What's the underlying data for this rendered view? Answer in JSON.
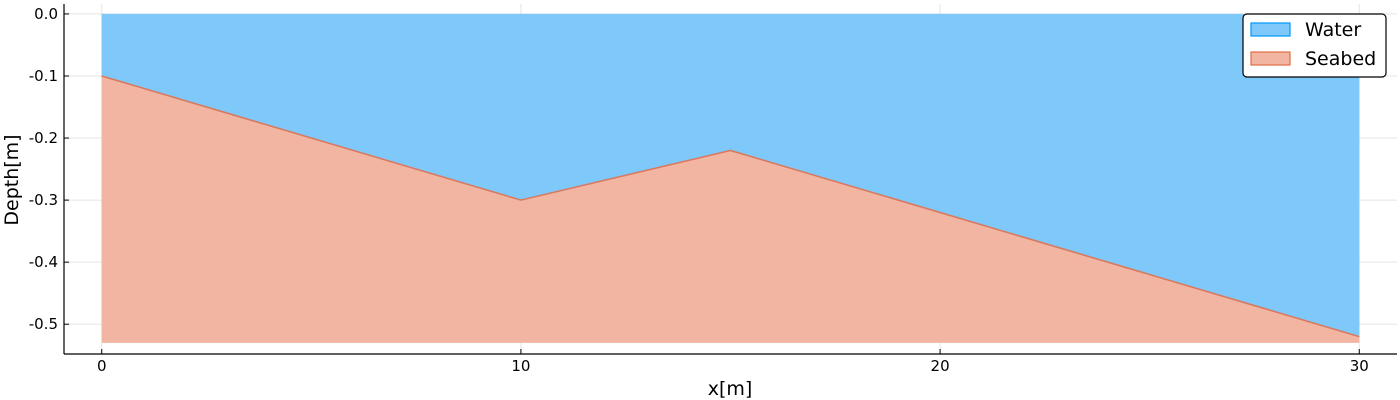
{
  "chart_data": {
    "type": "area",
    "xlabel": "x[m]",
    "ylabel": "Depth[m]",
    "xlim": [
      -0.9,
      30.9
    ],
    "ylim": [
      -0.548,
      0.016
    ],
    "xticks": [
      0,
      10,
      20,
      30
    ],
    "xtick_labels": [
      "0",
      "10",
      "20",
      "30"
    ],
    "yticks": [
      0.0,
      -0.1,
      -0.2,
      -0.3,
      -0.4,
      -0.5
    ],
    "ytick_labels": [
      "0.0",
      "-0.1",
      "-0.2",
      "-0.3",
      "-0.4",
      "-0.5"
    ],
    "grid": true,
    "legend_position": "top-right",
    "series": [
      {
        "name": "Water",
        "color": "#7ec9fa",
        "edge_color": "#009af9",
        "x": [
          0,
          10,
          15,
          30
        ],
        "upper": [
          0,
          0,
          0,
          0
        ],
        "lower": [
          -0.1,
          -0.3,
          -0.22,
          -0.52
        ]
      },
      {
        "name": "Seabed",
        "color": "#f1b5a2",
        "edge_color": "#e26f46",
        "line_color": "#d87a60",
        "x": [
          0,
          10,
          15,
          30
        ],
        "upper": [
          -0.1,
          -0.3,
          -0.22,
          -0.52
        ],
        "lower": [
          -0.53,
          -0.53,
          -0.53,
          -0.53
        ]
      }
    ]
  }
}
